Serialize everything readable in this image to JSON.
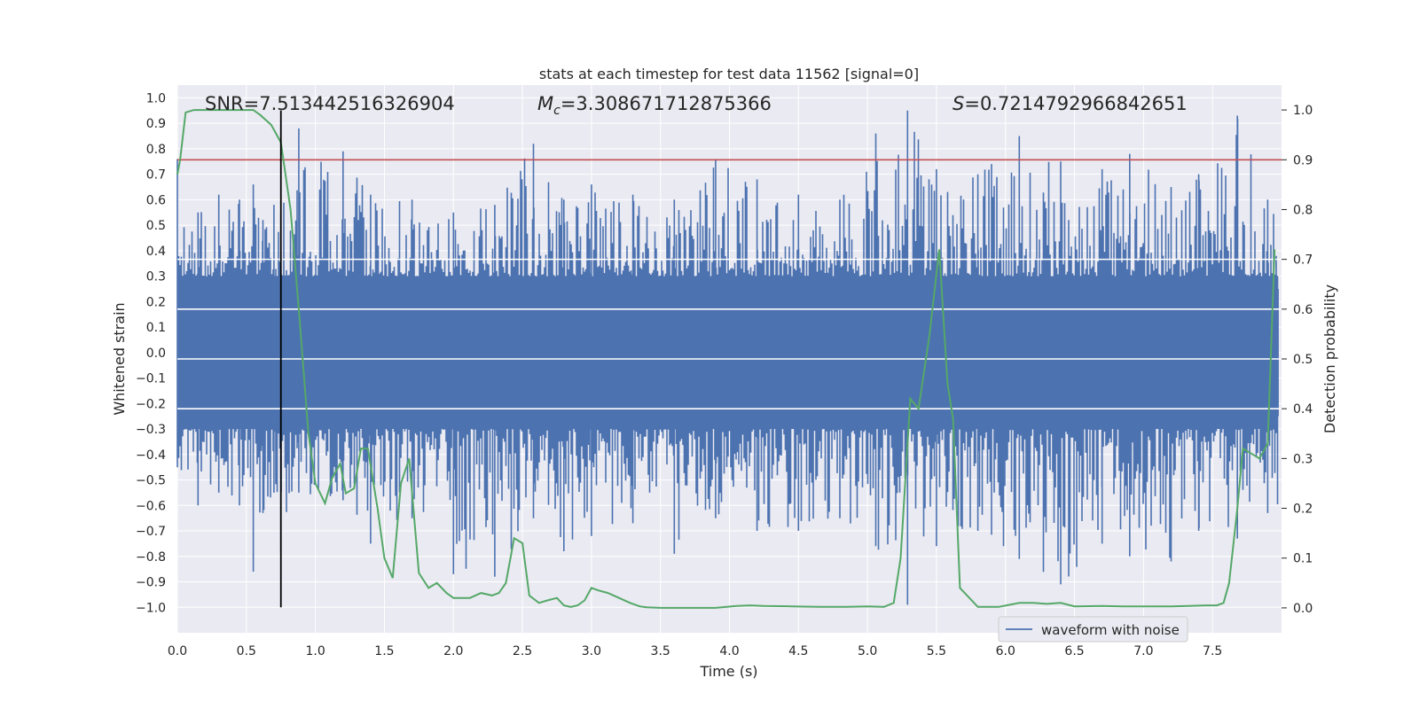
{
  "chart_data": {
    "type": "line",
    "title": "stats at each timestep for test data 11562 [signal=0]",
    "xlabel": "Time (s)",
    "ylabel": "Whitened strain",
    "y2label": "Detection probability",
    "xlim": [
      0.0,
      8.0
    ],
    "ylim": [
      -1.1,
      1.05
    ],
    "y2lim": [
      -0.05,
      1.05
    ],
    "grid": true,
    "xticks": [
      0.0,
      0.5,
      1.0,
      1.5,
      2.0,
      2.5,
      3.0,
      3.5,
      4.0,
      4.5,
      5.0,
      5.5,
      6.0,
      6.5,
      7.0,
      7.5
    ],
    "xtick_labels": [
      "0.0",
      "0.5",
      "1.0",
      "1.5",
      "2.0",
      "2.5",
      "3.0",
      "3.5",
      "4.0",
      "4.5",
      "5.0",
      "5.5",
      "6.0",
      "6.5",
      "7.0",
      "7.5"
    ],
    "yticks": [
      1.0,
      0.9,
      0.8,
      0.7,
      0.6,
      0.5,
      0.4,
      0.3,
      0.2,
      0.1,
      0.0,
      -0.1,
      -0.2,
      -0.3,
      -0.4,
      -0.5,
      -0.6,
      -0.7,
      -0.8,
      -0.9,
      -1.0
    ],
    "ytick_labels": [
      "1.0",
      "0.9",
      "0.8",
      "0.7",
      "0.6",
      "0.5",
      "0.4",
      "0.3",
      "0.2",
      "0.1",
      "0.0",
      "−0.1",
      "−0.2",
      "−0.3",
      "−0.4",
      "−0.5",
      "−0.6",
      "−0.7",
      "−0.8",
      "−0.9",
      "−1.0"
    ],
    "y2ticks": [
      1.0,
      0.9,
      0.8,
      0.7,
      0.6,
      0.5,
      0.4,
      0.3,
      0.2,
      0.1,
      0.0
    ],
    "y2tick_labels": [
      "1.0",
      "0.9",
      "0.8",
      "0.7",
      "0.6",
      "0.5",
      "0.4",
      "0.3",
      "0.2",
      "0.1",
      "0.0"
    ],
    "annotations": {
      "snr": "SNR=7.513442516326904",
      "mc_symbol": "M",
      "mc_sub": "c",
      "mc_value": "=3.308671712875366",
      "s_symbol": "S",
      "s_value": "=0.7214792966842651"
    },
    "threshold": {
      "y2": 0.9,
      "color": "#c44e52"
    },
    "marker_time": 0.75,
    "legend": {
      "label": "waveform with noise",
      "location": "lower-right"
    },
    "colors": {
      "waveform": "#4c72b0",
      "probability": "#55a868",
      "marker": "#000000",
      "background": "#eaeaf2",
      "grid": "#ffffff"
    },
    "series": [
      {
        "name": "waveform with noise",
        "axis": "left",
        "x": [
          0.0,
          0.15,
          0.3,
          0.45,
          0.55,
          0.62,
          0.7,
          0.75,
          0.88,
          1.2,
          1.4,
          1.7,
          2.0,
          2.3,
          2.58,
          2.8,
          3.0,
          3.3,
          3.6,
          3.9,
          4.2,
          4.5,
          4.8,
          5.06,
          5.29,
          5.5,
          5.8,
          6.1,
          6.4,
          6.7,
          6.9,
          7.2,
          7.4,
          7.68,
          7.9
        ],
        "max": [
          0.76,
          0.55,
          0.62,
          0.6,
          0.66,
          0.52,
          0.58,
          0.55,
          0.88,
          0.79,
          0.62,
          0.6,
          0.55,
          0.58,
          0.82,
          0.6,
          0.66,
          0.62,
          0.6,
          0.76,
          0.68,
          0.62,
          0.6,
          0.86,
          0.95,
          0.72,
          0.7,
          0.85,
          0.75,
          0.72,
          0.78,
          0.65,
          0.7,
          0.93,
          0.6
        ],
        "min": [
          -0.45,
          -0.6,
          -0.55,
          -0.6,
          -0.86,
          -0.63,
          -0.55,
          -0.78,
          -0.55,
          -0.58,
          -0.75,
          -0.65,
          -0.87,
          -0.88,
          -0.65,
          -0.78,
          -0.72,
          -0.67,
          -0.79,
          -0.65,
          -0.7,
          -0.7,
          -0.65,
          -0.76,
          -0.99,
          -0.76,
          -0.7,
          -0.81,
          -0.91,
          -0.75,
          -0.8,
          -0.82,
          -0.7,
          -0.73,
          -0.63
        ]
      },
      {
        "name": "detection probability",
        "axis": "right",
        "x": [
          0.0,
          0.02,
          0.06,
          0.12,
          0.25,
          0.4,
          0.55,
          0.6,
          0.68,
          0.75,
          0.82,
          0.88,
          0.95,
          1.0,
          1.07,
          1.12,
          1.18,
          1.22,
          1.28,
          1.33,
          1.38,
          1.45,
          1.5,
          1.56,
          1.62,
          1.68,
          1.75,
          1.82,
          1.88,
          1.95,
          2.0,
          2.06,
          2.12,
          2.2,
          2.28,
          2.33,
          2.38,
          2.44,
          2.5,
          2.55,
          2.62,
          2.68,
          2.75,
          2.8,
          2.85,
          2.9,
          2.95,
          3.0,
          3.05,
          3.12,
          3.2,
          3.28,
          3.35,
          3.4,
          3.5,
          3.7,
          3.9,
          4.05,
          4.15,
          4.25,
          4.45,
          4.65,
          4.85,
          5.0,
          5.12,
          5.19,
          5.24,
          5.31,
          5.37,
          5.45,
          5.52,
          5.58,
          5.62,
          5.67,
          5.8,
          5.95,
          6.1,
          6.2,
          6.3,
          6.4,
          6.5,
          6.7,
          6.85,
          6.95,
          7.05,
          7.2,
          7.32,
          7.45,
          7.53,
          7.58,
          7.62,
          7.68,
          7.72,
          7.78,
          7.84,
          7.9,
          7.95
        ],
        "values": [
          0.87,
          0.9,
          0.995,
          1.0,
          1.0,
          1.0,
          1.0,
          0.99,
          0.97,
          0.935,
          0.8,
          0.6,
          0.35,
          0.25,
          0.21,
          0.26,
          0.29,
          0.23,
          0.24,
          0.32,
          0.32,
          0.2,
          0.1,
          0.06,
          0.25,
          0.3,
          0.07,
          0.04,
          0.05,
          0.03,
          0.02,
          0.02,
          0.02,
          0.03,
          0.025,
          0.03,
          0.05,
          0.14,
          0.13,
          0.025,
          0.01,
          0.015,
          0.02,
          0.005,
          0.002,
          0.005,
          0.015,
          0.04,
          0.035,
          0.03,
          0.02,
          0.01,
          0.003,
          0.001,
          0.0,
          0.0,
          0.0,
          0.004,
          0.005,
          0.004,
          0.003,
          0.002,
          0.002,
          0.003,
          0.002,
          0.01,
          0.1,
          0.42,
          0.4,
          0.55,
          0.72,
          0.45,
          0.38,
          0.04,
          0.002,
          0.002,
          0.01,
          0.01,
          0.008,
          0.01,
          0.003,
          0.004,
          0.003,
          0.003,
          0.003,
          0.003,
          0.004,
          0.005,
          0.005,
          0.01,
          0.05,
          0.2,
          0.32,
          0.31,
          0.3,
          0.33,
          0.72
        ]
      }
    ]
  }
}
